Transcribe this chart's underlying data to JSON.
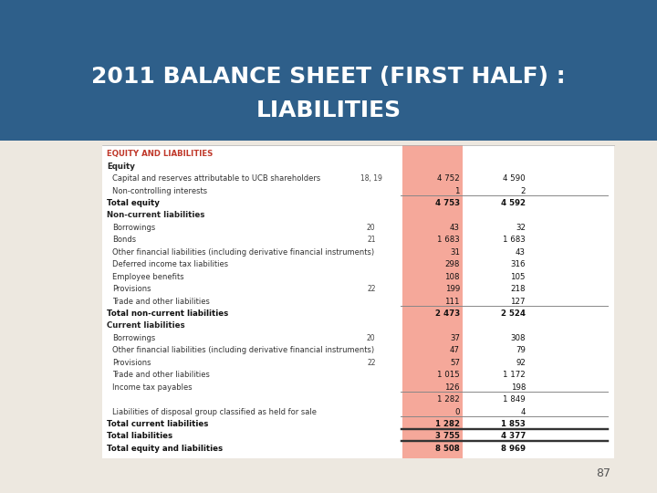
{
  "title_line1": "2011 BALANCE SHEET (FIRST HALF) :",
  "title_line2": "LIABILITIES",
  "title_bg": "#2E5F8A",
  "title_color": "#FFFFFF",
  "page_number": "87",
  "bg_color": "#EDE8E0",
  "table_bg": "#F5F2EE",
  "highlight_col_color": "#F5A89A",
  "section_header_color": "#C0392B",
  "rows": [
    {
      "label": "EQUITY AND LIABILITIES",
      "note": "",
      "col1": "",
      "col2": "",
      "type": "section_header"
    },
    {
      "label": "Equity",
      "note": "",
      "col1": "",
      "col2": "",
      "type": "subheader"
    },
    {
      "label": "Capital and reserves attributable to UCB shareholders",
      "note": "18, 19",
      "col1": "4 752",
      "col2": "4 590",
      "type": "normal"
    },
    {
      "label": "Non-controlling interests",
      "note": "",
      "col1": "1",
      "col2": "2",
      "type": "normal"
    },
    {
      "label": "Total equity",
      "note": "",
      "col1": "4 753",
      "col2": "4 592",
      "type": "bold",
      "top_line": true
    },
    {
      "label": "Non-current liabilities",
      "note": "",
      "col1": "",
      "col2": "",
      "type": "subheader"
    },
    {
      "label": "Borrowings",
      "note": "20",
      "col1": "43",
      "col2": "32",
      "type": "normal"
    },
    {
      "label": "Bonds",
      "note": "21",
      "col1": "1 683",
      "col2": "1 683",
      "type": "normal"
    },
    {
      "label": "Other financial liabilities (including derivative financial instruments)",
      "note": "",
      "col1": "31",
      "col2": "43",
      "type": "normal"
    },
    {
      "label": "Deferred income tax liabilities",
      "note": "",
      "col1": "298",
      "col2": "316",
      "type": "normal"
    },
    {
      "label": "Employee benefits",
      "note": "",
      "col1": "108",
      "col2": "105",
      "type": "normal"
    },
    {
      "label": "Provisions",
      "note": "22",
      "col1": "199",
      "col2": "218",
      "type": "normal"
    },
    {
      "label": "Trade and other liabilities",
      "note": "",
      "col1": "111",
      "col2": "127",
      "type": "normal"
    },
    {
      "label": "Total non-current liabilities",
      "note": "",
      "col1": "2 473",
      "col2": "2 524",
      "type": "bold",
      "top_line": true
    },
    {
      "label": "Current liabilities",
      "note": "",
      "col1": "",
      "col2": "",
      "type": "subheader"
    },
    {
      "label": "Borrowings",
      "note": "20",
      "col1": "37",
      "col2": "308",
      "type": "normal"
    },
    {
      "label": "Other financial liabilities (including derivative financial instruments)",
      "note": "",
      "col1": "47",
      "col2": "79",
      "type": "normal"
    },
    {
      "label": "Provisions",
      "note": "22",
      "col1": "57",
      "col2": "92",
      "type": "normal"
    },
    {
      "label": "Trade and other liabilities",
      "note": "",
      "col1": "1 015",
      "col2": "1 172",
      "type": "normal"
    },
    {
      "label": "Income tax payables",
      "note": "",
      "col1": "126",
      "col2": "198",
      "type": "normal"
    },
    {
      "label": "",
      "note": "",
      "col1": "1 282",
      "col2": "1 849",
      "type": "subtotal",
      "top_line": true
    },
    {
      "label": "Liabilities of disposal group classified as held for sale",
      "note": "",
      "col1": "0",
      "col2": "4",
      "type": "normal"
    },
    {
      "label": "Total current liabilities",
      "note": "",
      "col1": "1 282",
      "col2": "1 853",
      "type": "bold",
      "top_line": true
    },
    {
      "label": "Total liabilities",
      "note": "",
      "col1": "3 755",
      "col2": "4 377",
      "type": "bold",
      "top_line": true,
      "double_line": true
    },
    {
      "label": "Total equity and liabilities",
      "note": "",
      "col1": "8 508",
      "col2": "8 969",
      "type": "bold",
      "top_line": false,
      "double_line": true
    }
  ]
}
